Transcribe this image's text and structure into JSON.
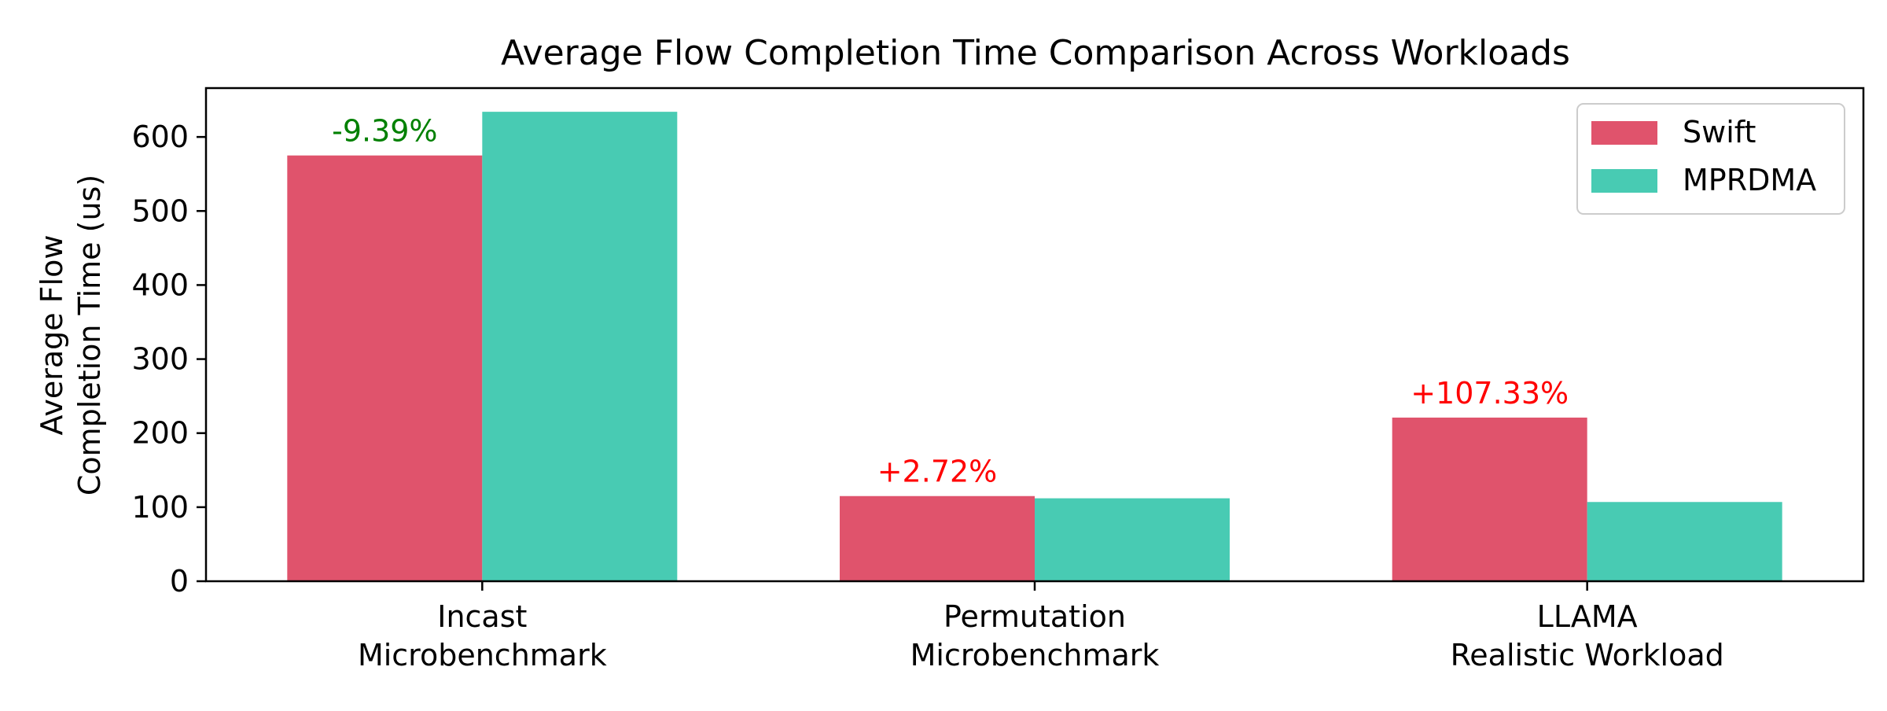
{
  "chart_data": {
    "type": "bar",
    "title": "Average Flow Completion Time Comparison Across Workloads",
    "xlabel": "",
    "ylabel": [
      "Average Flow",
      "Completion Time (us)"
    ],
    "categories": [
      [
        "Incast",
        "Microbenchmark"
      ],
      [
        "Permutation",
        "Microbenchmark"
      ],
      [
        "LLAMA",
        "Realistic Workload"
      ]
    ],
    "series": [
      {
        "name": "Swift",
        "color": "#E0536C",
        "values": [
          575,
          115,
          221
        ]
      },
      {
        "name": "MPRDMA",
        "color": "#48CBB3",
        "values": [
          634,
          112,
          107
        ]
      }
    ],
    "annotations": [
      {
        "category_index": 0,
        "text": "-9.39%",
        "color": "#008000"
      },
      {
        "category_index": 1,
        "text": "+2.72%",
        "color": "#FF0000"
      },
      {
        "category_index": 2,
        "text": "+107.33%",
        "color": "#FF0000"
      }
    ],
    "ylim": [
      0,
      666
    ],
    "yticks": [
      0,
      100,
      200,
      300,
      400,
      500,
      600
    ],
    "grid": false,
    "legend_position": "top-right"
  }
}
